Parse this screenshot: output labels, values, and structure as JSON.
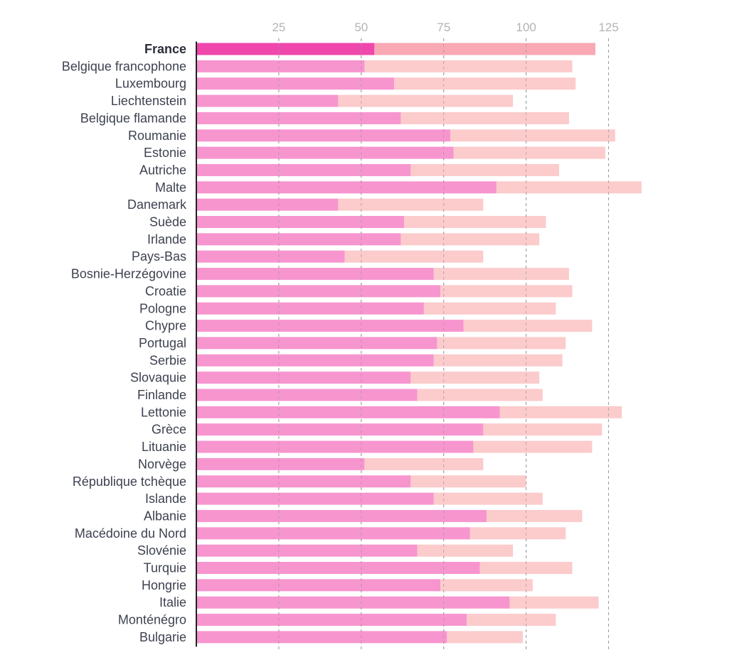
{
  "chart_data": {
    "type": "bar",
    "orientation": "horizontal",
    "stacked": true,
    "highlight_category": "France",
    "xlim": [
      0,
      135
    ],
    "xticks": [
      25,
      50,
      75,
      100,
      125
    ],
    "grid": "vertical dashed",
    "colors": {
      "part1": "#f795cf",
      "part2": "#fccbcc",
      "part1_highlight": "#ef47ac",
      "part2_highlight": "#f8a9b4"
    },
    "categories": [
      "France",
      "Belgique francophone",
      "Luxembourg",
      "Liechtenstein",
      "Belgique flamande",
      "Roumanie",
      "Estonie",
      "Autriche",
      "Malte",
      "Danemark",
      "Suède",
      "Irlande",
      "Pays-Bas",
      "Bosnie-Herzégovine",
      "Croatie",
      "Pologne",
      "Chypre",
      "Portugal",
      "Serbie",
      "Slovaquie",
      "Finlande",
      "Lettonie",
      "Grèce",
      "Lituanie",
      "Norvège",
      "République tchèque",
      "Islande",
      "Albanie",
      "Macédoine du Nord",
      "Slovénie",
      "Turquie",
      "Hongrie",
      "Italie",
      "Monténégro",
      "Bulgarie"
    ],
    "series": [
      {
        "values": [
          54,
          51,
          60,
          43,
          62,
          77,
          78,
          65,
          91,
          43,
          63,
          62,
          45,
          72,
          74,
          69,
          81,
          73,
          72,
          65,
          67,
          92,
          87,
          84,
          51,
          65,
          72,
          88,
          83,
          67,
          86,
          74,
          95,
          82,
          76
        ]
      },
      {
        "values": [
          67,
          63,
          55,
          53,
          51,
          50,
          46,
          45,
          44,
          44,
          43,
          42,
          42,
          41,
          40,
          40,
          39,
          39,
          39,
          39,
          38,
          37,
          36,
          36,
          36,
          35,
          33,
          29,
          29,
          29,
          28,
          28,
          27,
          27,
          23
        ]
      }
    ]
  }
}
